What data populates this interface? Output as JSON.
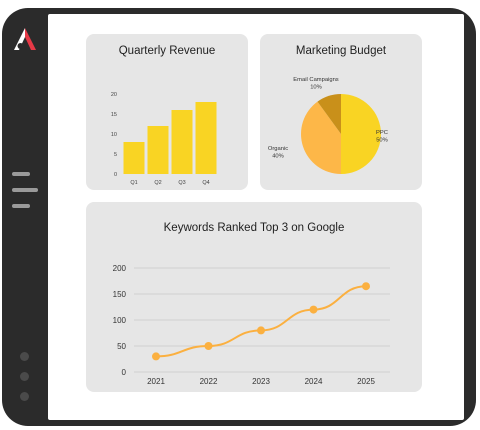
{
  "colors": {
    "frame": "#2b2b2b",
    "card_bg": "#e6e6e6",
    "bar": "#f9d423",
    "line": "#fbb040",
    "pie_ppc": "#f9d423",
    "pie_organic": "#fdb748",
    "pie_email": "#c9901a",
    "logo_red": "#e63946"
  },
  "sidebar": {
    "logo_icon": "brand-a-logo-icon",
    "menu_icon": "hamburger-menu-icon",
    "dots": [
      "nav-dot-1",
      "nav-dot-2",
      "nav-dot-3"
    ]
  },
  "chart_data": [
    {
      "type": "bar",
      "title": "Quarterly Revenue",
      "categories": [
        "Q1",
        "Q2",
        "Q3",
        "Q4"
      ],
      "values": [
        8,
        12,
        16,
        18
      ],
      "yticks": [
        "0",
        "5",
        "10",
        "15",
        "20"
      ],
      "ylim": [
        0,
        20
      ],
      "grid": false
    },
    {
      "type": "pie",
      "title": "Marketing Budget",
      "slices": [
        {
          "label": "PPC",
          "pct_label": "50%",
          "value": 50
        },
        {
          "label": "Organic",
          "pct_label": "40%",
          "value": 40
        },
        {
          "label": "Email Campaigns",
          "pct_label": "10%",
          "value": 10
        }
      ]
    },
    {
      "type": "line",
      "title": "Keywords Ranked Top 3 on Google",
      "x": [
        "2021",
        "2022",
        "2023",
        "2024",
        "2025"
      ],
      "values": [
        30,
        50,
        80,
        120,
        165
      ],
      "yticks": [
        "0",
        "50",
        "100",
        "150",
        "200"
      ],
      "ylim": [
        0,
        200
      ],
      "grid": true
    }
  ]
}
